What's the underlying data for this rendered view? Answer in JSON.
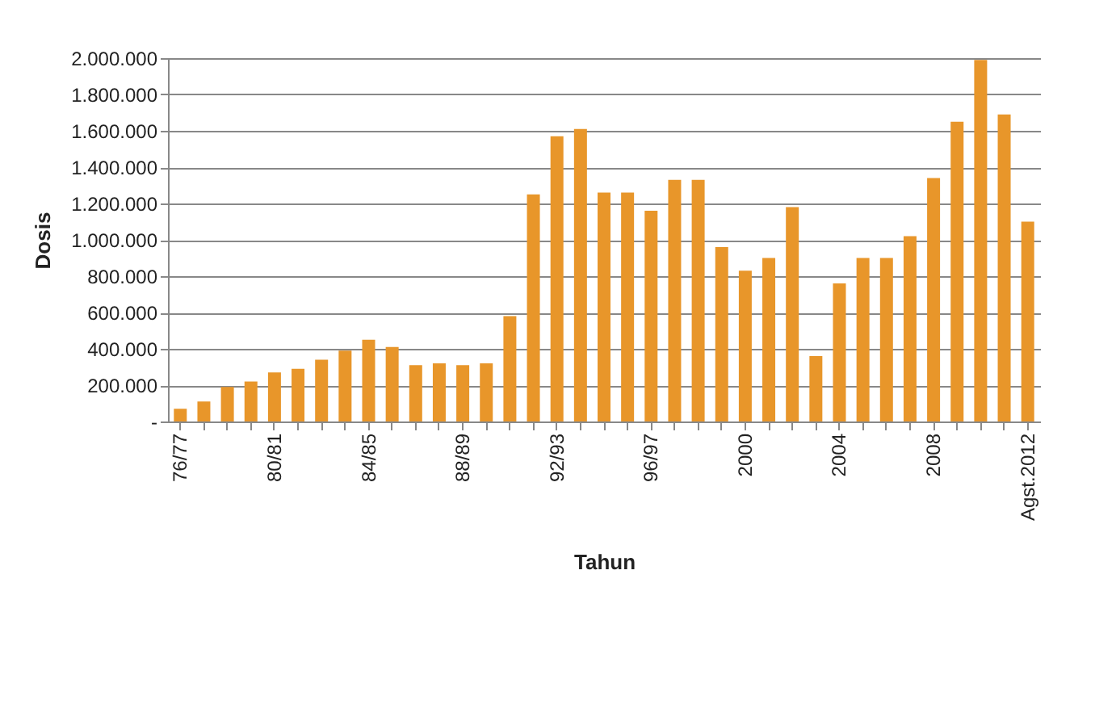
{
  "chart_data": {
    "type": "bar",
    "xlabel": "Tahun",
    "ylabel": "Dosis",
    "categories": [
      "76/77",
      null,
      null,
      null,
      "80/81",
      null,
      null,
      null,
      "84/85",
      null,
      null,
      null,
      "88/89",
      null,
      null,
      null,
      "92/93",
      null,
      null,
      null,
      "96/97",
      null,
      null,
      null,
      "2000",
      null,
      null,
      null,
      "2004",
      null,
      null,
      null,
      "2008",
      null,
      null,
      null,
      "Agst.2012"
    ],
    "values": [
      70000,
      110000,
      190000,
      220000,
      270000,
      290000,
      340000,
      390000,
      450000,
      410000,
      310000,
      320000,
      310000,
      320000,
      580000,
      1250000,
      1570000,
      1610000,
      1260000,
      1260000,
      1160000,
      1330000,
      1330000,
      960000,
      830000,
      900000,
      1180000,
      360000,
      760000,
      900000,
      900000,
      1020000,
      1340000,
      1650000,
      1990000,
      1690000,
      1100000
    ],
    "color": "#e8962a",
    "ylim": [
      0,
      2000000
    ],
    "yticks": [
      {
        "value": 0,
        "label": "-"
      },
      {
        "value": 200000,
        "label": "200.000"
      },
      {
        "value": 400000,
        "label": "400.000"
      },
      {
        "value": 600000,
        "label": "600.000"
      },
      {
        "value": 800000,
        "label": "800.000"
      },
      {
        "value": 1000000,
        "label": "1.000.000"
      },
      {
        "value": 1200000,
        "label": "1.200.000"
      },
      {
        "value": 1400000,
        "label": "1.400.000"
      },
      {
        "value": 1600000,
        "label": "1.600.000"
      },
      {
        "value": 1800000,
        "label": "1.800.000"
      },
      {
        "value": 2000000,
        "label": "2.000.000"
      }
    ],
    "grid": "y"
  }
}
